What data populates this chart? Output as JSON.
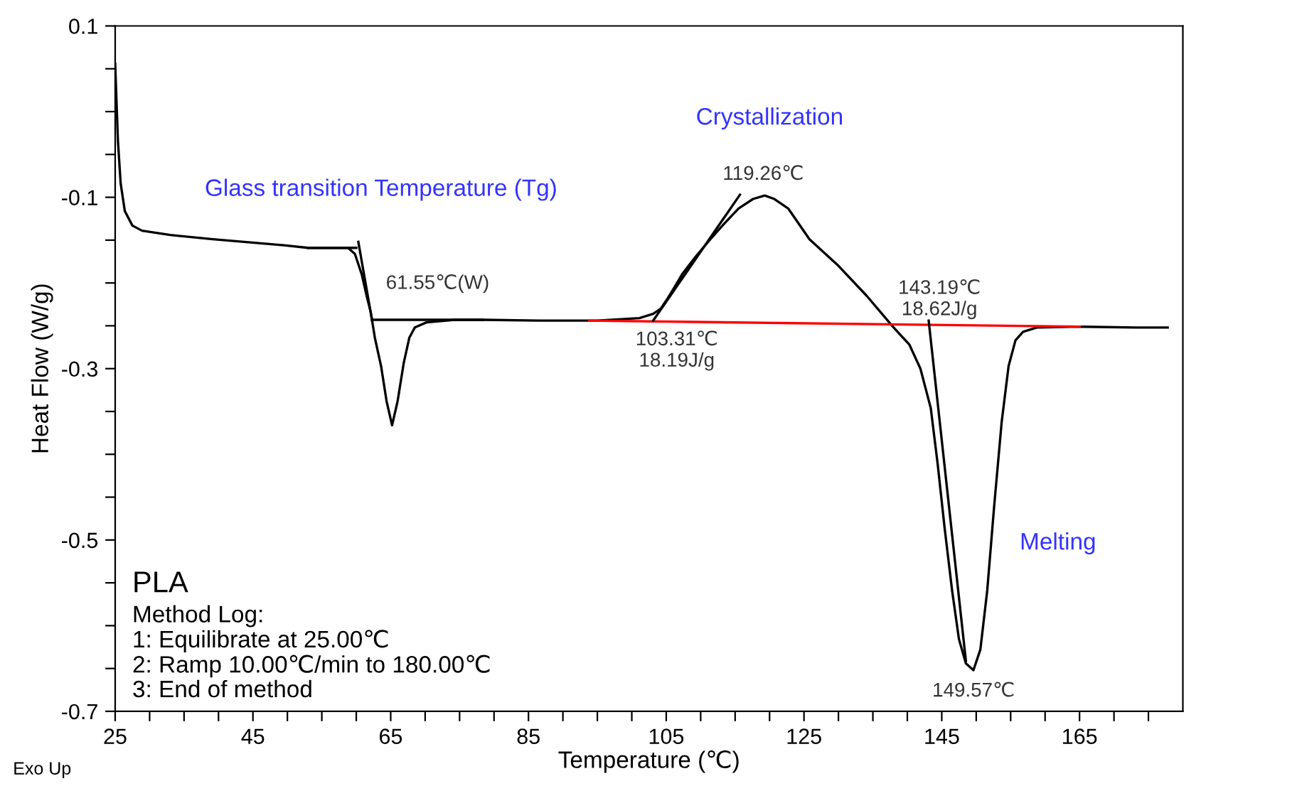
{
  "chart_data": {
    "type": "line",
    "xlabel": "Temperature (℃)",
    "ylabel": "Heat Flow (W/g)",
    "xlim": [
      25,
      180
    ],
    "ylim": [
      -0.7,
      0.1
    ],
    "xticks": [
      25,
      {
        "value": 30,
        "label": null
      },
      {
        "value": 35,
        "label": null
      },
      {
        "value": 40,
        "label": null
      },
      45,
      {
        "value": 50,
        "label": null
      },
      {
        "value": 55,
        "label": null
      },
      {
        "value": 60,
        "label": null
      },
      65,
      {
        "value": 70,
        "label": null
      },
      {
        "value": 75,
        "label": null
      },
      {
        "value": 80,
        "label": null
      },
      85,
      {
        "value": 90,
        "label": null
      },
      {
        "value": 95,
        "label": null
      },
      {
        "value": 100,
        "label": null
      },
      105,
      {
        "value": 110,
        "label": null
      },
      {
        "value": 115,
        "label": null
      },
      {
        "value": 120,
        "label": null
      },
      125,
      {
        "value": 130,
        "label": null
      },
      {
        "value": 135,
        "label": null
      },
      {
        "value": 140,
        "label": null
      },
      145,
      {
        "value": 150,
        "label": null
      },
      {
        "value": 155,
        "label": null
      },
      {
        "value": 160,
        "label": null
      },
      165,
      {
        "value": 170,
        "label": null
      },
      {
        "value": 175,
        "label": null
      }
    ],
    "yticks": [
      -0.7,
      {
        "value": -0.65,
        "label": null
      },
      {
        "value": -0.6,
        "label": null
      },
      {
        "value": -0.55,
        "label": null
      },
      -0.5,
      {
        "value": -0.45,
        "label": null
      },
      {
        "value": -0.4,
        "label": null
      },
      {
        "value": -0.35,
        "label": null
      },
      -0.3,
      {
        "value": -0.25,
        "label": null
      },
      {
        "value": -0.2,
        "label": null
      },
      {
        "value": -0.15,
        "label": null
      },
      -0.1,
      {
        "value": -0.05,
        "label": null
      },
      {
        "value": 0,
        "label": null
      },
      {
        "value": 0.05,
        "label": null
      },
      0.1
    ],
    "grid": false,
    "legend": false,
    "marker": "none",
    "line_style": "solid",
    "series": [
      {
        "color": "#000000",
        "x": [
          25.0,
          25.4,
          25.8,
          26.4,
          27.5,
          28.9,
          33.0,
          39.2,
          49.5,
          53.0,
          58.8,
          59.8,
          60.8,
          61.5,
          62.1,
          62.7,
          63.6,
          64.4,
          65.2,
          66.0,
          66.9,
          67.7,
          68.5,
          70.2,
          74.3,
          78.4,
          86.6,
          94.9,
          101.1,
          103.1,
          104.2,
          105.2,
          106.2,
          107.3,
          109.3,
          111.4,
          113.5,
          115.5,
          117.6,
          119.3,
          120.7,
          122.7,
          125.8,
          130.0,
          134.1,
          137.9,
          140.3,
          141.9,
          143.4,
          144.4,
          145.4,
          146.5,
          147.5,
          148.5,
          149.6,
          150.6,
          151.6,
          152.6,
          153.7,
          154.7,
          155.7,
          156.8,
          158.8,
          165.0,
          173.2,
          177.8
        ],
        "values": [
          0.056,
          -0.034,
          -0.084,
          -0.116,
          -0.133,
          -0.139,
          -0.144,
          -0.149,
          -0.156,
          -0.159,
          -0.159,
          -0.166,
          -0.19,
          -0.215,
          -0.234,
          -0.264,
          -0.297,
          -0.338,
          -0.366,
          -0.338,
          -0.293,
          -0.264,
          -0.252,
          -0.246,
          -0.243,
          -0.243,
          -0.244,
          -0.244,
          -0.241,
          -0.236,
          -0.23,
          -0.218,
          -0.205,
          -0.19,
          -0.169,
          -0.149,
          -0.13,
          -0.113,
          -0.102,
          -0.098,
          -0.102,
          -0.113,
          -0.149,
          -0.18,
          -0.215,
          -0.251,
          -0.272,
          -0.3,
          -0.346,
          -0.411,
          -0.485,
          -0.559,
          -0.616,
          -0.644,
          -0.652,
          -0.628,
          -0.559,
          -0.461,
          -0.362,
          -0.297,
          -0.267,
          -0.257,
          -0.252,
          -0.251,
          -0.252,
          -0.252
        ]
      },
      {
        "color": "#ff0000",
        "x": [
          93.8,
          165.0
        ],
        "values": [
          -0.244,
          -0.251
        ]
      },
      {
        "color": "#000000",
        "x": [
          53.0,
          60.0
        ],
        "values": [
          -0.159,
          -0.159
        ]
      },
      {
        "color": "#000000",
        "x": [
          60.3,
          62.3
        ],
        "values": [
          -0.152,
          -0.244
        ]
      },
      {
        "color": "#000000",
        "x": [
          62.3,
          78.4
        ],
        "values": [
          -0.243,
          -0.243
        ]
      },
      {
        "color": "#000000",
        "x": [
          103.1,
          115.7
        ],
        "values": [
          -0.244,
          -0.097
        ]
      },
      {
        "color": "#000000",
        "x": [
          143.1,
          148.5
        ],
        "values": [
          -0.244,
          -0.641
        ]
      }
    ],
    "annotations": [
      "Glass transition Temperature (Tg)",
      "Crystallization",
      "Melting",
      "61.55℃(W)",
      "119.26℃",
      "103.31℃\n18.19J/g",
      "143.19℃\n18.62J/g",
      "149.57℃",
      "PLA",
      "Method Log:\n1: Equilibrate at 25.00℃\n2: Ramp 10.00℃/min to 180.00℃\n3: End of method",
      "Exo Up"
    ]
  }
}
